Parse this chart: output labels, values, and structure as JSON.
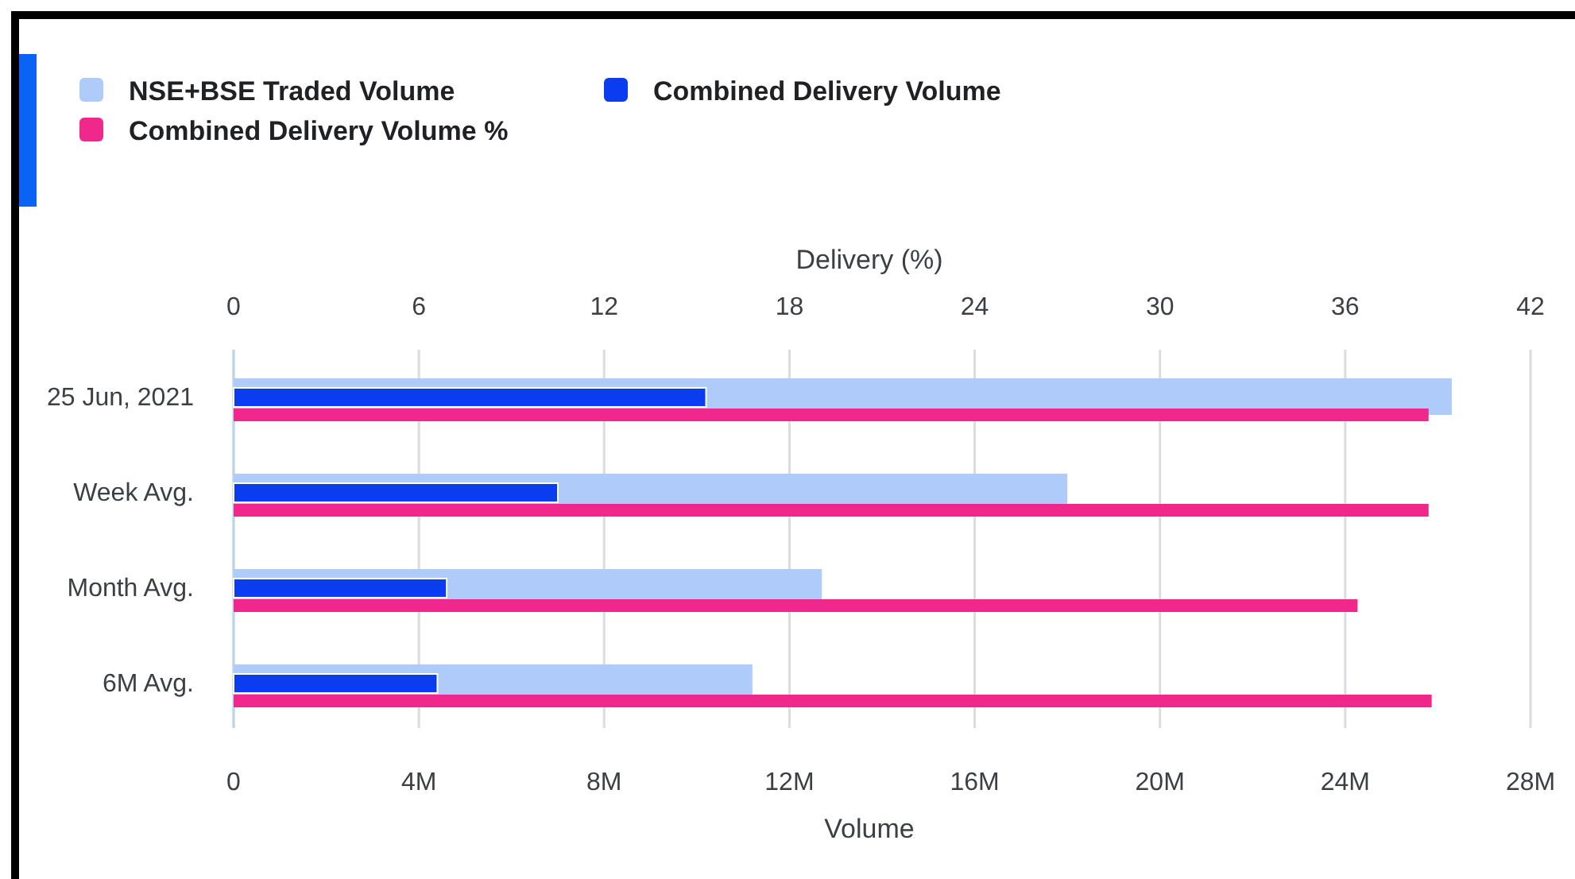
{
  "chart_data": {
    "type": "bar",
    "orientation": "horizontal",
    "categories": [
      "25 Jun, 2021",
      "Week Avg.",
      "Month Avg.",
      "6M Avg."
    ],
    "series": [
      {
        "name": "NSE+BSE Traded Volume",
        "color": "#aecbfa",
        "values": [
          26300000,
          18000000,
          12700000,
          11200000
        ]
      },
      {
        "name": "Combined Delivery Volume",
        "color": "#0a3cf0",
        "values": [
          10200000,
          7000000,
          4600000,
          4400000
        ]
      },
      {
        "name": "Combined Delivery Volume %",
        "color": "#f0288c",
        "axis": "x2",
        "values": [
          38.7,
          38.7,
          36.4,
          38.8
        ]
      }
    ],
    "xlabel": "Volume",
    "xlim": [
      0,
      28000000
    ],
    "xticks": [
      0,
      {
        "value": 4000000,
        "label": "4M"
      },
      {
        "value": 8000000,
        "label": "8M"
      },
      {
        "value": 12000000,
        "label": "12M"
      },
      {
        "value": 16000000,
        "label": "16M"
      },
      {
        "value": 20000000,
        "label": "20M"
      },
      {
        "value": 24000000,
        "label": "24M"
      },
      {
        "value": 28000000,
        "label": "28M"
      }
    ],
    "x2label": "Delivery (%)",
    "x2lim": [
      0,
      42
    ],
    "x2ticks": [
      0,
      6,
      12,
      18,
      24,
      30,
      36,
      42
    ],
    "grid": "x",
    "legend": "top"
  }
}
